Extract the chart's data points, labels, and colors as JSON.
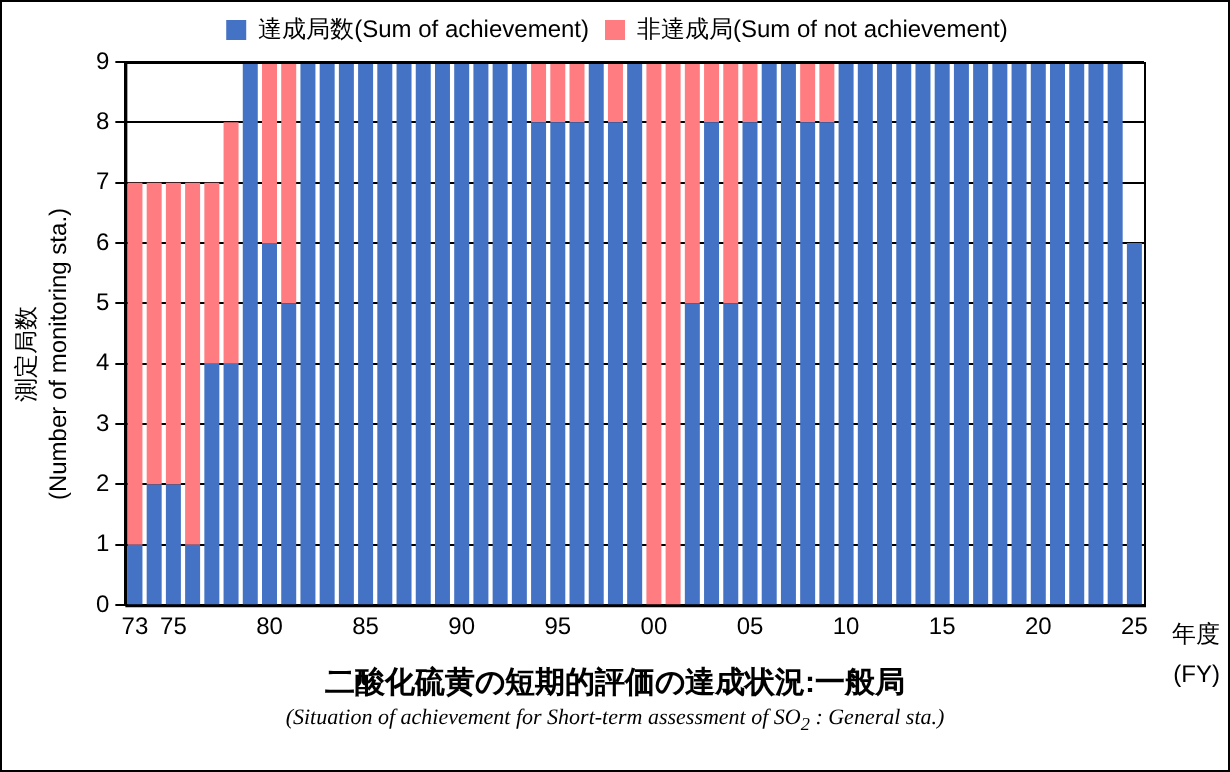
{
  "chart_data": {
    "type": "bar",
    "stacked": true,
    "title": "二酸化硫黄の短期的評価の達成状況:一般局",
    "subtitle": "(Situation of achievement for Short-term assessment of SO$_{2}$ : General sta.)",
    "xlabel": "年度\n(FY)",
    "ylabel": "測定局数\n(Number of monitoring sta.)",
    "categories": [
      "73",
      null,
      "75",
      null,
      null,
      null,
      null,
      "80",
      null,
      null,
      null,
      null,
      "85",
      null,
      null,
      null,
      null,
      "90",
      null,
      null,
      null,
      null,
      "95",
      null,
      null,
      null,
      null,
      "00",
      null,
      null,
      null,
      null,
      "05",
      null,
      null,
      null,
      null,
      "10",
      null,
      null,
      null,
      null,
      "15",
      null,
      null,
      null,
      null,
      "20",
      null,
      null,
      null,
      null,
      "25"
    ],
    "series": [
      {
        "name": "達成局数(Sum of achievement)",
        "color": "#4472c4",
        "values": [
          1,
          2,
          2,
          1,
          4,
          4,
          9,
          6,
          5,
          9,
          9,
          9,
          9,
          9,
          9,
          9,
          9,
          9,
          9,
          9,
          9,
          8,
          8,
          8,
          9,
          8,
          9,
          0,
          0,
          5,
          8,
          5,
          8,
          9,
          9,
          8,
          8,
          9,
          9,
          9,
          9,
          9,
          9,
          9,
          9,
          9,
          9,
          9,
          9,
          9,
          9,
          9,
          6
        ]
      },
      {
        "name": "非達成局(Sum of not achievement)",
        "color": "#ff7c80",
        "values": [
          6,
          5,
          5,
          6,
          3,
          4,
          0,
          3,
          4,
          0,
          0,
          0,
          0,
          0,
          0,
          0,
          0,
          0,
          0,
          0,
          0,
          1,
          1,
          1,
          0,
          1,
          0,
          9,
          9,
          4,
          1,
          4,
          1,
          0,
          0,
          1,
          1,
          0,
          0,
          0,
          0,
          0,
          0,
          0,
          0,
          0,
          0,
          0,
          0,
          0,
          0,
          0,
          0
        ]
      }
    ],
    "ylim": [
      0,
      9
    ],
    "yticks": [
      0,
      1,
      2,
      3,
      4,
      5,
      6,
      7,
      8,
      9
    ],
    "grid": "y",
    "legend": "top"
  }
}
